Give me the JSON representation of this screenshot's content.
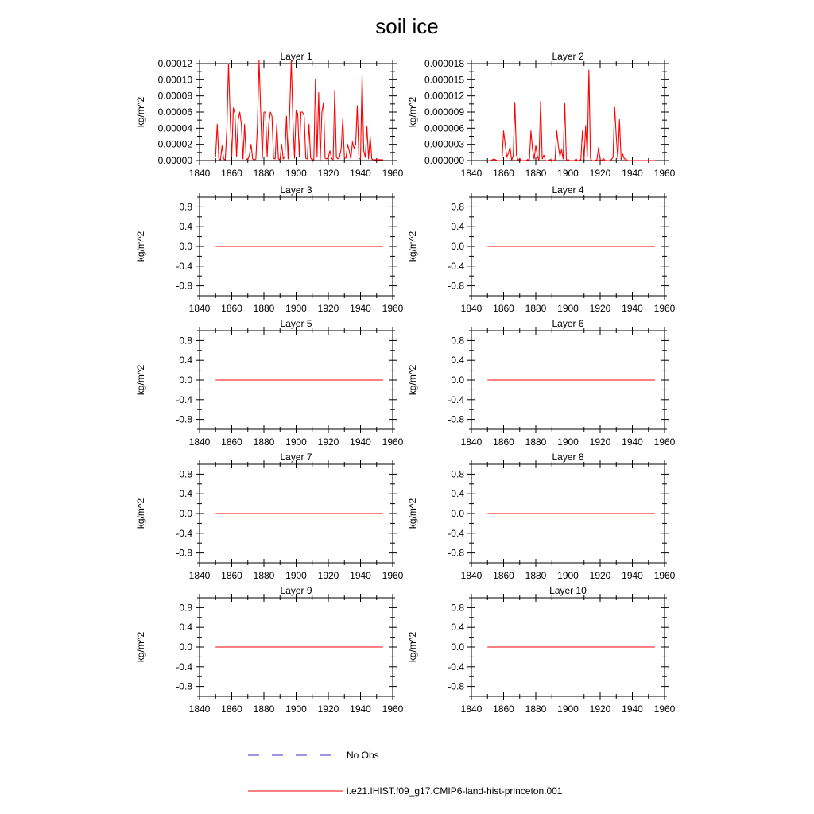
{
  "title": "soil ice",
  "colors": {
    "model": "#ff0000",
    "obs": "#3333cc",
    "axis": "#000000"
  },
  "legend": {
    "obs_label": "No Obs",
    "model_label": "i.e21.IHIST.f09_g17.CMIP6-land-hist-princeton.001"
  },
  "chart_data": [
    {
      "type": "line",
      "title": "Layer 1",
      "ylabel": "kg/m^2",
      "xlim": [
        1840,
        1960
      ],
      "ylim": [
        0,
        0.00012
      ],
      "xticks": [
        "1840",
        "1860",
        "1880",
        "1900",
        "1920",
        "1940",
        "1960"
      ],
      "yticks": [
        "0.00000",
        "0.00002",
        "0.00004",
        "0.00006",
        "0.00008",
        "0.00010",
        "0.00012"
      ],
      "series": [
        {
          "x": [
            1850,
            1851,
            1852,
            1853,
            1854,
            1855,
            1856,
            1857,
            1858,
            1859,
            1860,
            1861,
            1862,
            1863,
            1864,
            1865,
            1866,
            1867,
            1868,
            1869,
            1870,
            1871,
            1872,
            1873,
            1874,
            1875,
            1876,
            1877,
            1878,
            1879,
            1880,
            1881,
            1882,
            1883,
            1884,
            1885,
            1886,
            1887,
            1888,
            1889,
            1890,
            1891,
            1892,
            1893,
            1894,
            1895,
            1896,
            1897,
            1898,
            1899,
            1900,
            1901,
            1902,
            1903,
            1904,
            1905,
            1906,
            1907,
            1908,
            1909,
            1910,
            1911,
            1912,
            1913,
            1914,
            1915,
            1916,
            1917,
            1918,
            1919,
            1920,
            1921,
            1922,
            1923,
            1924,
            1925,
            1926,
            1927,
            1928,
            1929,
            1930,
            1931,
            1932,
            1933,
            1934,
            1935,
            1936,
            1937,
            1938,
            1939,
            1940,
            1941,
            1942,
            1943,
            1944,
            1945,
            1946,
            1947,
            1948,
            1949,
            1950,
            1951,
            1952,
            1953,
            1954
          ],
          "y": [
            5e-06,
            4.5e-05,
            2e-06,
            1e-06,
            1.8e-05,
            2e-06,
            1e-06,
            4e-05,
            0.00012,
            5.5e-05,
            5e-06,
            6.5e-05,
            5.8e-05,
            5e-06,
            5e-05,
            6e-05,
            4.5e-05,
            2e-06,
            4.5e-05,
            2e-06,
            1e-06,
            7e-06,
            2e-05,
            2e-06,
            1e-06,
            2e-06,
            4.5e-05,
            0.000124,
            6e-05,
            3e-06,
            6e-05,
            6e-05,
            5e-06,
            4.5e-05,
            6e-05,
            5.5e-05,
            3e-06,
            2e-06,
            4.5e-05,
            2e-06,
            1e-06,
            2e-05,
            2e-06,
            5e-06,
            5.5e-05,
            2e-06,
            6e-05,
            0.000124,
            5e-05,
            3e-06,
            6.2e-05,
            5.8e-05,
            5e-06,
            6e-05,
            6e-05,
            5.5e-05,
            3e-06,
            2e-06,
            4.5e-05,
            3e-06,
            1e-06,
            1e-06,
            0.000101,
            5e-06,
            8.4e-05,
            1e-06,
            6e-05,
            7.2e-05,
            3e-06,
            2e-06,
            4e-06,
            1.2e-05,
            3e-06,
            1e-06,
            8.7e-05,
            4e-06,
            2e-06,
            4e-06,
            1.5e-05,
            5.2e-05,
            3e-06,
            3e-06,
            2e-05,
            1.2e-05,
            2e-06,
            2.3e-05,
            1.5e-05,
            2e-05,
            6.8e-05,
            3e-06,
            2e-06,
            0.000106,
            1.2e-05,
            4e-06,
            4.2e-05,
            2e-06,
            3e-05,
            2e-06,
            1e-06,
            1e-06,
            1e-06,
            1e-06,
            1e-06,
            1e-06,
            1e-06
          ]
        }
      ]
    },
    {
      "type": "line",
      "title": "Layer 2",
      "ylabel": "kg/m^2",
      "xlim": [
        1840,
        1960
      ],
      "ylim": [
        0,
        1.8e-05
      ],
      "xticks": [
        "1840",
        "1860",
        "1880",
        "1900",
        "1920",
        "1940",
        "1960"
      ],
      "yticks": [
        "0.000000",
        "0.000003",
        "0.000006",
        "0.000009",
        "0.000012",
        "0.000015",
        "0.000018"
      ],
      "series": [
        {
          "x": [
            1850,
            1852,
            1854,
            1856,
            1858,
            1859,
            1860,
            1861,
            1862,
            1863,
            1864,
            1865,
            1866,
            1867,
            1868,
            1869,
            1870,
            1871,
            1872,
            1873,
            1874,
            1875,
            1876,
            1877,
            1878,
            1879,
            1880,
            1881,
            1882,
            1883,
            1884,
            1885,
            1886,
            1887,
            1888,
            1889,
            1890,
            1891,
            1892,
            1893,
            1894,
            1895,
            1896,
            1897,
            1898,
            1899,
            1900,
            1901,
            1902,
            1903,
            1904,
            1905,
            1906,
            1907,
            1908,
            1909,
            1910,
            1911,
            1912,
            1913,
            1914,
            1915,
            1916,
            1917,
            1918,
            1919,
            1920,
            1921,
            1922,
            1923,
            1924,
            1925,
            1926,
            1927,
            1928,
            1929,
            1930,
            1931,
            1932,
            1933,
            1934,
            1935,
            1936,
            1937,
            1938,
            1939,
            1940,
            1941,
            1942,
            1943,
            1944,
            1945,
            1946,
            1947,
            1948,
            1949,
            1950,
            1951,
            1952,
            1953,
            1954
          ],
          "y": [
            0,
            0,
            3e-07,
            0,
            0,
            0,
            5.5e-06,
            3e-06,
            6e-07,
            1.4e-06,
            2.5e-06,
            0,
            1e-06,
            1.08e-05,
            1e-06,
            0,
            4e-07,
            0,
            0,
            0,
            0,
            2e-07,
            0,
            5.5e-06,
            2e-06,
            3e-07,
            2.8e-06,
            8e-07,
            0,
            1.1e-05,
            3e-07,
            1e-06,
            0,
            0,
            0,
            2e-07,
            0,
            0,
            2e-07,
            5.5e-06,
            2.8e-06,
            8e-07,
            2e-06,
            3e-07,
            1.07e-05,
            0,
            2e-07,
            0,
            0,
            0,
            0,
            3e-07,
            0,
            0,
            2e-07,
            5.5e-06,
            2e-07,
            6.5e-06,
            8e-07,
            1.68e-05,
            3e-07,
            0,
            0,
            0,
            2e-07,
            2.4e-06,
            2e-07,
            0,
            4e-07,
            0,
            0,
            0,
            0,
            2e-07,
            6e-07,
            1e-05,
            4.5e-06,
            3e-07,
            7.6e-06,
            2e-07,
            1.2e-06,
            3e-07,
            3e-07,
            0,
            0,
            0,
            0,
            0,
            0,
            0,
            0,
            0,
            0,
            0,
            0,
            0,
            0,
            0,
            0,
            0,
            0
          ]
        }
      ]
    },
    {
      "type": "line",
      "title": "Layer 3",
      "ylabel": "kg/m^2",
      "xlim": [
        1840,
        1960
      ],
      "ylim": [
        -1,
        1
      ],
      "xticks": [
        "1840",
        "1860",
        "1880",
        "1900",
        "1920",
        "1940",
        "1960"
      ],
      "yticks": [
        "0.8",
        "0.4",
        "0.0",
        "-0.4",
        "-0.8"
      ],
      "series": [
        {
          "x": [
            1850,
            1954
          ],
          "y": [
            0,
            0
          ]
        }
      ]
    },
    {
      "type": "line",
      "title": "Layer 4",
      "ylabel": "kg/m^2",
      "xlim": [
        1840,
        1960
      ],
      "ylim": [
        -1,
        1
      ],
      "xticks": [
        "1840",
        "1860",
        "1880",
        "1900",
        "1920",
        "1940",
        "1960"
      ],
      "yticks": [
        "0.8",
        "0.4",
        "0.0",
        "-0.4",
        "-0.8"
      ],
      "series": [
        {
          "x": [
            1850,
            1954
          ],
          "y": [
            0,
            0
          ]
        }
      ]
    },
    {
      "type": "line",
      "title": "Layer 5",
      "ylabel": "kg/m^2",
      "xlim": [
        1840,
        1960
      ],
      "ylim": [
        -1,
        1
      ],
      "xticks": [
        "1840",
        "1860",
        "1880",
        "1900",
        "1920",
        "1940",
        "1960"
      ],
      "yticks": [
        "0.8",
        "0.4",
        "0.0",
        "-0.4",
        "-0.8"
      ],
      "series": [
        {
          "x": [
            1850,
            1954
          ],
          "y": [
            0,
            0
          ]
        }
      ]
    },
    {
      "type": "line",
      "title": "Layer 6",
      "ylabel": "kg/m^2",
      "xlim": [
        1840,
        1960
      ],
      "ylim": [
        -1,
        1
      ],
      "xticks": [
        "1840",
        "1860",
        "1880",
        "1900",
        "1920",
        "1940",
        "1960"
      ],
      "yticks": [
        "0.8",
        "0.4",
        "0.0",
        "-0.4",
        "-0.8"
      ],
      "series": [
        {
          "x": [
            1850,
            1954
          ],
          "y": [
            0,
            0
          ]
        }
      ]
    },
    {
      "type": "line",
      "title": "Layer 7",
      "ylabel": "kg/m^2",
      "xlim": [
        1840,
        1960
      ],
      "ylim": [
        -1,
        1
      ],
      "xticks": [
        "1840",
        "1860",
        "1880",
        "1900",
        "1920",
        "1940",
        "1960"
      ],
      "yticks": [
        "0.8",
        "0.4",
        "0.0",
        "-0.4",
        "-0.8"
      ],
      "series": [
        {
          "x": [
            1850,
            1954
          ],
          "y": [
            0,
            0
          ]
        }
      ]
    },
    {
      "type": "line",
      "title": "Layer 8",
      "ylabel": "kg/m^2",
      "xlim": [
        1840,
        1960
      ],
      "ylim": [
        -1,
        1
      ],
      "xticks": [
        "1840",
        "1860",
        "1880",
        "1900",
        "1920",
        "1940",
        "1960"
      ],
      "yticks": [
        "0.8",
        "0.4",
        "0.0",
        "-0.4",
        "-0.8"
      ],
      "series": [
        {
          "x": [
            1850,
            1954
          ],
          "y": [
            0,
            0
          ]
        }
      ]
    },
    {
      "type": "line",
      "title": "Layer 9",
      "ylabel": "kg/m^2",
      "xlim": [
        1840,
        1960
      ],
      "ylim": [
        -1,
        1
      ],
      "xticks": [
        "1840",
        "1860",
        "1880",
        "1900",
        "1920",
        "1940",
        "1960"
      ],
      "yticks": [
        "0.8",
        "0.4",
        "0.0",
        "-0.4",
        "-0.8"
      ],
      "series": [
        {
          "x": [
            1850,
            1954
          ],
          "y": [
            0,
            0
          ]
        }
      ]
    },
    {
      "type": "line",
      "title": "Layer 10",
      "ylabel": "kg/m^2",
      "xlim": [
        1840,
        1960
      ],
      "ylim": [
        -1,
        1
      ],
      "xticks": [
        "1840",
        "1860",
        "1880",
        "1900",
        "1920",
        "1940",
        "1960"
      ],
      "yticks": [
        "0.8",
        "0.4",
        "0.0",
        "-0.4",
        "-0.8"
      ],
      "series": [
        {
          "x": [
            1850,
            1954
          ],
          "y": [
            0,
            0
          ]
        }
      ]
    }
  ]
}
